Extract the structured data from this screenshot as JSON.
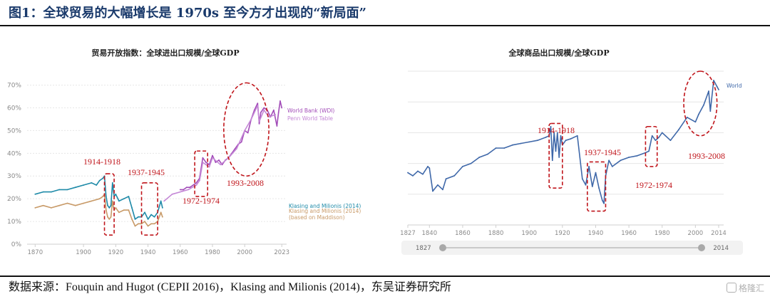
{
  "figure": {
    "title": "图1：全球贸易的大幅增长是 1970s 至今方才出现的“新局面”",
    "source": "数据来源：Fouquin and Hugot (CEPII 2016)，Klasing and Milionis (2014)，东吴证券研究所",
    "watermark": "格隆汇"
  },
  "colors": {
    "title": "#1a3a6b",
    "wdi": "#a24cb8",
    "penn": "#c487d6",
    "klasing": "#1e8aa8",
    "maddison": "#c89a68",
    "world": "#3f68a9",
    "annotation": "#c0151b",
    "grid": "#e6e6e6",
    "axis_text": "#8a8a8a"
  },
  "chart_data": [
    {
      "type": "line",
      "title": "贸易开放指数：全球进出口规模/全球GDP",
      "xlabel": "",
      "ylabel": "",
      "xlim": [
        1865,
        2026
      ],
      "ylim": [
        0,
        73
      ],
      "xticks": [
        "1870",
        "1900",
        "1920",
        "1940",
        "1960",
        "1980",
        "2000",
        "2023"
      ],
      "xtick_values": [
        1870,
        1900,
        1920,
        1940,
        1960,
        1980,
        2000,
        2023
      ],
      "yticks": [
        "0%",
        "10%",
        "20%",
        "30%",
        "40%",
        "50%",
        "60%",
        "70%"
      ],
      "ytick_values": [
        0,
        10,
        20,
        30,
        40,
        50,
        60,
        70
      ],
      "grid": true,
      "series": [
        {
          "name": "World Bank (WDI)",
          "color": "#a24cb8",
          "label_text": "World Bank (WDI)",
          "x": [
            1960,
            1962,
            1964,
            1966,
            1968,
            1970,
            1972,
            1974,
            1976,
            1978,
            1980,
            1982,
            1984,
            1986,
            1988,
            1990,
            1992,
            1994,
            1996,
            1998,
            2000,
            2002,
            2004,
            2006,
            2008,
            2009,
            2010,
            2012,
            2014,
            2016,
            2018,
            2020,
            2021,
            2022,
            2023
          ],
          "y": [
            24,
            24,
            25,
            25,
            26,
            27,
            29,
            38,
            36,
            35,
            39,
            36,
            37,
            35,
            37,
            38,
            40,
            42,
            44,
            45,
            50,
            49,
            55,
            59,
            62,
            53,
            58,
            60,
            59,
            56,
            59,
            52,
            58,
            63,
            60
          ]
        },
        {
          "name": "Penn World Table",
          "color": "#c487d6",
          "label_text": "Penn World Table",
          "x": [
            1950,
            1955,
            1960,
            1965,
            1970,
            1972,
            1974,
            1976,
            1978,
            1980,
            1985,
            1990,
            1995,
            2000,
            2004,
            2008,
            2009,
            2012,
            2015,
            2019
          ],
          "y": [
            19,
            22,
            23,
            24,
            26,
            28,
            36,
            35,
            34,
            38,
            35,
            38,
            42,
            50,
            55,
            61,
            54,
            59,
            56,
            57
          ]
        },
        {
          "name": "Klasing and Milionis (2014)",
          "color": "#1e8aa8",
          "label_text": "Klasing and Milionis (2014)",
          "x": [
            1870,
            1875,
            1880,
            1885,
            1890,
            1895,
            1900,
            1905,
            1908,
            1910,
            1912,
            1913,
            1914,
            1915,
            1916,
            1917,
            1918,
            1919,
            1920,
            1922,
            1925,
            1928,
            1930,
            1932,
            1934,
            1936,
            1938,
            1940,
            1942,
            1944,
            1946,
            1948,
            1949
          ],
          "y": [
            22,
            23,
            23,
            24,
            24,
            25,
            26,
            27,
            26,
            28,
            29,
            30,
            21,
            17,
            16,
            17,
            27,
            21,
            22,
            19,
            20,
            21,
            16,
            11,
            12,
            12,
            14,
            11,
            13,
            12,
            14,
            19,
            16
          ]
        },
        {
          "name": "Klasing and Milionis (2014) (based on Maddison)",
          "color": "#c89a68",
          "label_text": "Klasing and Milionis (2014) (based on Maddison)",
          "x": [
            1870,
            1875,
            1880,
            1885,
            1890,
            1895,
            1900,
            1905,
            1910,
            1912,
            1913,
            1914,
            1915,
            1916,
            1917,
            1918,
            1919,
            1920,
            1922,
            1925,
            1928,
            1930,
            1932,
            1934,
            1936,
            1938,
            1940,
            1942,
            1944,
            1946,
            1948,
            1949
          ],
          "y": [
            16,
            17,
            16,
            17,
            18,
            17,
            18,
            19,
            20,
            21,
            22,
            15,
            12,
            11,
            12,
            19,
            15,
            16,
            14,
            15,
            15,
            11,
            8,
            9,
            9,
            10,
            8,
            9,
            9,
            10,
            14,
            12
          ]
        }
      ],
      "annotations": [
        {
          "label": "1914-1918",
          "x_range": [
            1913,
            1919
          ],
          "y_range": [
            4,
            31
          ]
        },
        {
          "label": "1937-1945",
          "x_range": [
            1936,
            1946
          ],
          "y_range": [
            4,
            27
          ]
        },
        {
          "label": "1972-1974",
          "x_range": [
            1969,
            1977
          ],
          "y_range": [
            21,
            41
          ]
        },
        {
          "label": "1993-2008",
          "x_range": [
            1987,
            2015
          ],
          "y_range": [
            30,
            71
          ]
        }
      ]
    },
    {
      "type": "line",
      "title": "全球商品出口规模/全球GDP",
      "xlabel": "",
      "ylabel": "",
      "xlim": [
        1827,
        2017
      ],
      "ylim": [
        0,
        100
      ],
      "xticks": [
        "1827",
        "1840",
        "1860",
        "1880",
        "1900",
        "1920",
        "1940",
        "1960",
        "1980",
        "2000",
        "2014"
      ],
      "xtick_values": [
        1827,
        1840,
        1860,
        1880,
        1900,
        1920,
        1940,
        1960,
        1980,
        2000,
        2014
      ],
      "grid": true,
      "range_slider": {
        "start": "1827",
        "end": "2014"
      },
      "series": [
        {
          "name": "World",
          "color": "#3f68a9",
          "label_text": "World",
          "x": [
            1827,
            1830,
            1833,
            1836,
            1839,
            1840,
            1842,
            1845,
            1848,
            1850,
            1855,
            1860,
            1865,
            1870,
            1875,
            1880,
            1885,
            1890,
            1895,
            1900,
            1905,
            1910,
            1912,
            1913,
            1914,
            1915,
            1916,
            1917,
            1918,
            1919,
            1920,
            1922,
            1925,
            1929,
            1932,
            1934,
            1936,
            1938,
            1940,
            1942,
            1944,
            1945,
            1946,
            1948,
            1950,
            1955,
            1960,
            1965,
            1970,
            1972,
            1974,
            1976,
            1978,
            1980,
            1982,
            1985,
            1990,
            1995,
            2000,
            2002,
            2005,
            2008,
            2009,
            2011,
            2013,
            2014
          ],
          "y": [
            34,
            32,
            35,
            33,
            38,
            37,
            22,
            26,
            23,
            30,
            32,
            38,
            40,
            44,
            46,
            50,
            50,
            52,
            53,
            54,
            55,
            57,
            58,
            64,
            42,
            60,
            48,
            60,
            44,
            58,
            52,
            55,
            56,
            58,
            30,
            26,
            38,
            25,
            34,
            24,
            16,
            14,
            32,
            42,
            38,
            42,
            44,
            45,
            47,
            48,
            58,
            55,
            57,
            60,
            58,
            55,
            62,
            70,
            67,
            72,
            78,
            87,
            74,
            94,
            90,
            88
          ]
        }
      ],
      "annotations": [
        {
          "label": "1914-1918",
          "x_range": [
            1912,
            1920
          ],
          "y_range": [
            24,
            66
          ]
        },
        {
          "label": "1937-1945",
          "x_range": [
            1935,
            1946
          ],
          "y_range": [
            9,
            41
          ]
        },
        {
          "label": "1972-1974",
          "x_range": [
            1970,
            1977
          ],
          "y_range": [
            38,
            64
          ]
        },
        {
          "label": "1993-2008",
          "x_range": [
            1993,
            2013
          ],
          "y_range": [
            58,
            100
          ]
        }
      ]
    }
  ]
}
